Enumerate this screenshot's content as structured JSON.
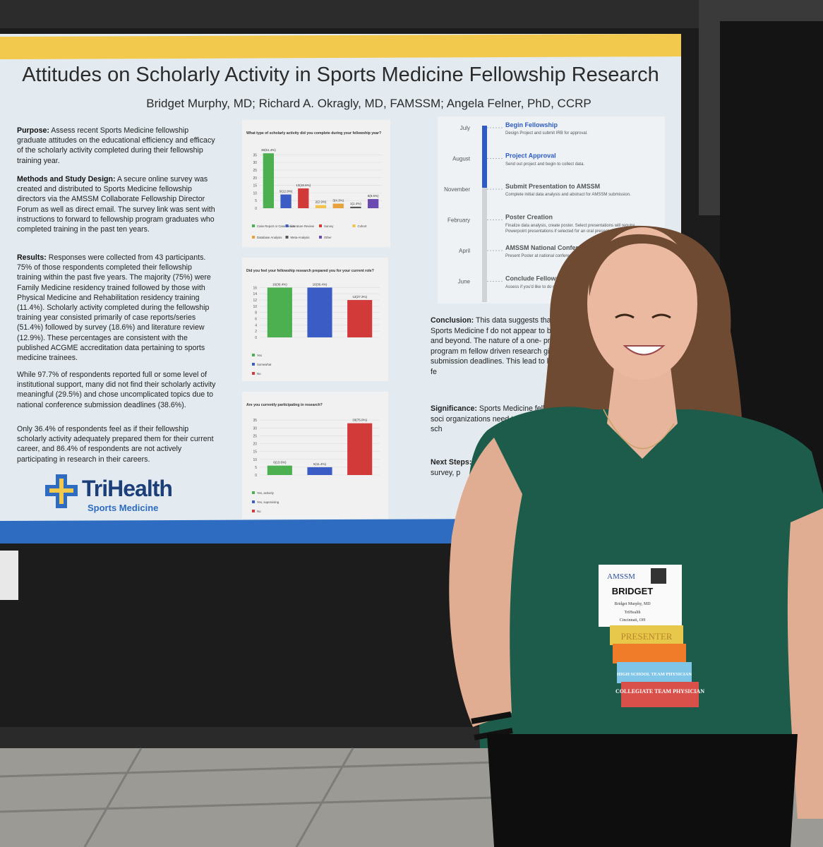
{
  "poster": {
    "title": "Attitudes on Scholarly Activity in Sports Medicine Fellowship Research",
    "authors": "Bridget Murphy, MD; Richard A. Okragly, MD, FAMSSM; Angela Felner, PhD, CCRP",
    "purpose": {
      "label": "Purpose:",
      "text": "Assess recent Sports Medicine fellowship graduate attitudes on the educational efficiency and efficacy of the scholarly activity completed during their fellowship training year."
    },
    "methods": {
      "label": "Methods and Study Design:",
      "text": "A secure online survey was created and distributed to Sports Medicine fellowship directors via the AMSSM Collaborate Fellowship Director Forum as well as direct email. The survey link was sent with instructions to forward to fellowship program graduates who completed training in the past ten years."
    },
    "results": {
      "label": "Results:",
      "text": "Responses were collected from 43 participants. 75% of those respondents completed their fellowship training within the past five years. The majority (75%) were Family Medicine residency trained followed by those with Physical Medicine and Rehabilitation residency training (11.4%). Scholarly activity completed during the fellowship training year consisted primarily of case reports/series (51.4%) followed by survey (18.6%) and literature review (12.9%). These percentages are consistent with the published ACGME accreditation data pertaining to sports medicine trainees."
    },
    "paragraph2": "While 97.7% of respondents reported full or some level of institutional support, many did not find their scholarly activity meaningful (29.5%) and chose uncomplicated topics due to national conference submission deadlines (38.6%).",
    "paragraph3": "Only 36.4% of respondents feel as if their fellowship scholarly activity adequately prepared them for their current career, and 86.4% of respondents are not actively participating in research in their careers.",
    "logo": "TriHealth",
    "logo_sub": "Sports Medicine",
    "timeline": [
      {
        "month": "July",
        "heading": "Begin Fellowship",
        "text": "Design Project and submit IRB for approval."
      },
      {
        "month": "August",
        "heading": "Project Approval",
        "text": "Send out project and begin to collect data."
      },
      {
        "month": "November",
        "heading": "Submit Presentation to AMSSM",
        "text": "Complete initial data analysis and abstract for AMSSM submission."
      },
      {
        "month": "February",
        "heading": "Poster Creation",
        "text": "Finalize data analysis, create poster. Select presentations will require Powerpoint presentations if selected for an oral presentation."
      },
      {
        "month": "April",
        "heading": "AMSSM National Conference",
        "text": "Present Poster at national conference."
      },
      {
        "month": "June",
        "heading": "Conclude Fellowship",
        "text": "Assess if you'd like to do research in the"
      }
    ],
    "conclusion": {
      "label": "Conclusion:",
      "text": "This data suggests that the expectations of many Sports Medicine f do not appear to be serving fellows duri year and beyond. The nature of a one- procedure heavy fellowship program m fellow driven research given the curren societies' submission deadlines. This lead to less robust Sports Medicine fe"
    },
    "significance": {
      "label": "Significance:",
      "text": "Sports Medicine fellow support from professional soci organizations need to b needs of sports me high quality sch"
    },
    "next_steps": {
      "label": "Next Steps:",
      "text": "to strengthe statistical p graduated years and survey, p"
    }
  },
  "chart_data": [
    {
      "type": "bar",
      "title": "What type of scholarly activity did you complete during your fellowship year?",
      "categories": [
        "Case Report or Case Series",
        "Literature Review",
        "Survey",
        "Cohort",
        "Database Analysis",
        "Meta-Analysis",
        "Other"
      ],
      "values": [
        36,
        9,
        13,
        2,
        3,
        1,
        6
      ],
      "value_labels": [
        "36(51.4%)",
        "9(12.9%)",
        "13(18.6%)",
        "2(2.9%)",
        "3(4.3%)",
        "1(1.4%)",
        "6(8.6%)"
      ],
      "colors": [
        "#4caf50",
        "#3b5cc4",
        "#d23a3a",
        "#f2c24a",
        "#e8a23c",
        "#555555",
        "#6a4ab0"
      ],
      "ylim": [
        0,
        37
      ],
      "yticks": [
        0,
        5,
        10,
        15,
        20,
        25,
        30,
        35
      ],
      "grid": true
    },
    {
      "type": "bar",
      "title": "Did you feel your fellowship research prepared you for your current role?",
      "categories": [
        "Yes",
        "Somewhat",
        "No"
      ],
      "values": [
        16,
        16,
        12
      ],
      "value_labels": [
        "16(36.4%)",
        "16(36.4%)",
        "12(27.3%)"
      ],
      "colors": [
        "#4caf50",
        "#3b5cc4",
        "#d23a3a"
      ],
      "ylim": [
        0,
        17
      ],
      "yticks": [
        0,
        2,
        4,
        6,
        8,
        10,
        12,
        14,
        16
      ],
      "grid": true
    },
    {
      "type": "bar",
      "title": "Are you currently participating in research?",
      "categories": [
        "Yes, actively",
        "Yes, supervising",
        "No"
      ],
      "values": [
        6,
        5,
        33
      ],
      "value_labels": [
        "6(13.6%)",
        "5(11.4%)",
        "33(75.0%)"
      ],
      "colors": [
        "#4caf50",
        "#3b5cc4",
        "#d23a3a"
      ],
      "ylim": [
        0,
        36
      ],
      "yticks": [
        0,
        5,
        10,
        15,
        20,
        25,
        30,
        35
      ],
      "grid": true
    }
  ],
  "badge": {
    "org": "AMSSM",
    "name": "BRIDGET",
    "full_name": "Bridget Murphy, MD",
    "affiliation": "TriHealth",
    "city": "Cincinnati, OH",
    "ribbons": [
      "PRESENTER",
      "HIGH SCHOOL TEAM PHYSICIAN",
      "COLLEGIATE TEAM PHYSICIAN"
    ]
  }
}
